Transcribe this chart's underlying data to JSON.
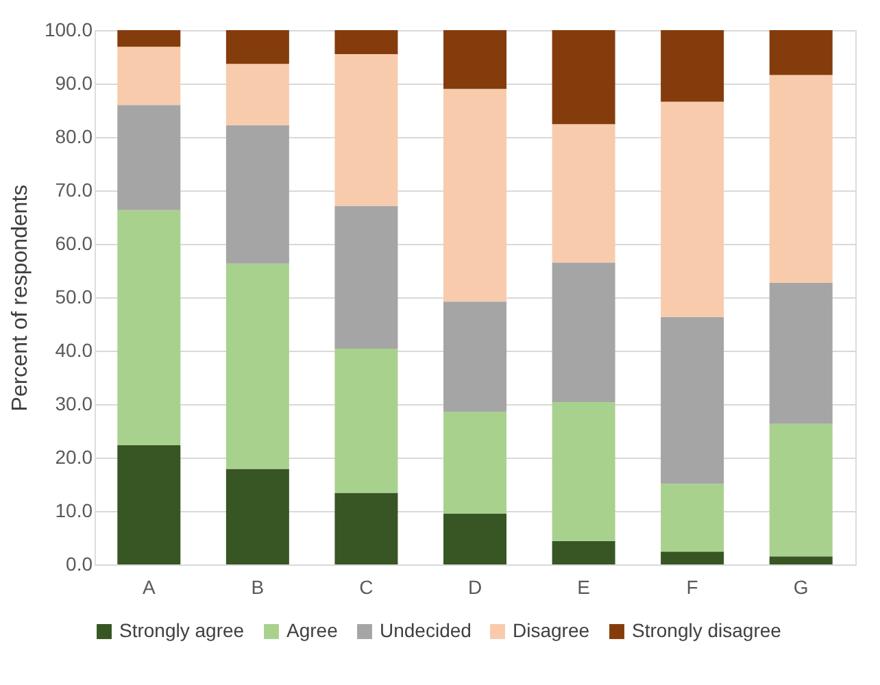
{
  "chart_data": {
    "type": "bar",
    "stacked": true,
    "ylabel": "Percent of respondents",
    "categories": [
      "A",
      "B",
      "C",
      "D",
      "E",
      "F",
      "G"
    ],
    "series": [
      {
        "name": "Strongly agree",
        "color": "#375623",
        "values": [
          22.3,
          17.9,
          13.4,
          9.5,
          4.4,
          2.4,
          1.5
        ]
      },
      {
        "name": "Agree",
        "color": "#a9d18e",
        "values": [
          44.0,
          38.4,
          27.0,
          19.1,
          26.0,
          12.7,
          24.8
        ]
      },
      {
        "name": "Undecided",
        "color": "#a5a5a5",
        "values": [
          19.7,
          25.9,
          26.7,
          20.6,
          26.1,
          31.2,
          26.4
        ]
      },
      {
        "name": "Disagree",
        "color": "#f8cbad",
        "values": [
          10.9,
          11.5,
          28.4,
          39.8,
          25.9,
          40.3,
          38.9
        ]
      },
      {
        "name": "Strongly disagree",
        "color": "#843c0c",
        "values": [
          3.1,
          6.3,
          4.5,
          11.0,
          17.6,
          13.4,
          8.4
        ]
      }
    ],
    "ylim": [
      0,
      100
    ],
    "yticks": [
      {
        "value": 0,
        "label": "0.0"
      },
      {
        "value": 10,
        "label": "10.0"
      },
      {
        "value": 20,
        "label": "20.0"
      },
      {
        "value": 30,
        "label": "30.0"
      },
      {
        "value": 40,
        "label": "40.0"
      },
      {
        "value": 50,
        "label": "50.0"
      },
      {
        "value": 60,
        "label": "60.0"
      },
      {
        "value": 70,
        "label": "70.0"
      },
      {
        "value": 80,
        "label": "80.0"
      },
      {
        "value": 90,
        "label": "90.0"
      },
      {
        "value": 100,
        "label": "100.0"
      }
    ],
    "grid": "y",
    "legend": "bottom"
  }
}
